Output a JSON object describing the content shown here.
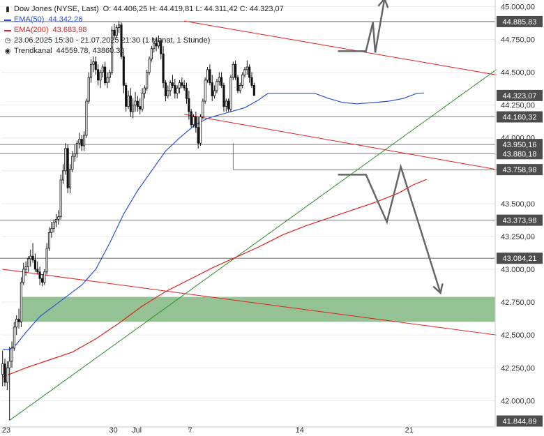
{
  "legend": {
    "title": "Dow Jones (NYSE, Last)",
    "ohlc": "O: 44.406,25  H: 44.419,81  L: 44.311,42  C: 44.323,07",
    "ema50_label": "EMA(50)",
    "ema50_value": "44.342,26",
    "ema200_label": "EMA(200)",
    "ema200_value": "43.683,98",
    "period": "23.06.2025 15:30 - 21.07.2025 21:30   (1 Monat, 1 Stunde)",
    "trend_label": "Trendkanal",
    "trend_value": "44559.78, 43860.30",
    "colors": {
      "ema50": "#2a4fd6",
      "ema200": "#e02020",
      "trend": "#555555"
    }
  },
  "chart_data": {
    "type": "candlestick",
    "ylim": [
      41800,
      45050
    ],
    "y_ticks": [
      {
        "v": 45000,
        "label": "45.000,00"
      },
      {
        "v": 44750,
        "label": "44.750,00"
      },
      {
        "v": 44500,
        "label": "44.500,00"
      },
      {
        "v": 44250,
        "label": "44.250,00"
      },
      {
        "v": 44000,
        "label": "44.000,00"
      },
      {
        "v": 43750,
        "label": "43.750,00"
      },
      {
        "v": 43500,
        "label": "43.500,00"
      },
      {
        "v": 43250,
        "label": "43.250,00"
      },
      {
        "v": 43000,
        "label": "43.000,00"
      },
      {
        "v": 42750,
        "label": "42.750,00"
      },
      {
        "v": 42500,
        "label": "42.500,00"
      },
      {
        "v": 42250,
        "label": "42.250,00"
      },
      {
        "v": 42000,
        "label": "42.000,00"
      }
    ],
    "x_labels": [
      {
        "i": 1,
        "label": "23"
      },
      {
        "i": 47,
        "label": "30"
      },
      {
        "i": 57,
        "label": "Jul"
      },
      {
        "i": 80,
        "label": "7"
      },
      {
        "i": 127,
        "label": "14"
      },
      {
        "i": 174,
        "label": "21"
      }
    ],
    "n_slots": 212,
    "levels": [
      {
        "v": 44885.83,
        "label": "44.885,83",
        "line": true
      },
      {
        "v": 44323.07,
        "label": "44.323,07",
        "line": false
      },
      {
        "v": 44160.32,
        "label": "44.160,32",
        "line": true
      },
      {
        "v": 43950.16,
        "label": "43.950,16",
        "line": true
      },
      {
        "v": 43880.18,
        "label": "43.880,18",
        "line": true
      },
      {
        "v": 43758.98,
        "label": "43.758,98",
        "line": false
      },
      {
        "v": 43373.98,
        "label": "43.373,98",
        "line": true
      },
      {
        "v": 43084.21,
        "label": "43.084,21",
        "line": true
      },
      {
        "v": 41844.89,
        "label": "41.844,89",
        "line": false
      }
    ],
    "support_zone": {
      "from": 42600,
      "to": 42790,
      "x_from": 8
    },
    "trend_lines": [
      {
        "name": "",
        "color": "#e02020",
        "x1": 78,
        "y1": 44890,
        "x2": 212,
        "y2": 44480
      },
      {
        "name": "",
        "color": "#e02020",
        "x1": 78,
        "y1": 44180,
        "x2": 212,
        "y2": 43760
      },
      {
        "name": "",
        "color": "#e02020",
        "x1": 0,
        "y1": 43000,
        "x2": 212,
        "y2": 42500
      },
      {
        "name": "",
        "color": "#2e8b2e",
        "x1": 3,
        "y1": 41850,
        "x2": 212,
        "y2": 44520
      }
    ],
    "ema50": [
      [
        0,
        42390
      ],
      [
        3,
        42390
      ],
      [
        6,
        42430
      ],
      [
        10,
        42520
      ],
      [
        16,
        42640
      ],
      [
        22,
        42720
      ],
      [
        28,
        42800
      ],
      [
        34,
        42880
      ],
      [
        40,
        43000
      ],
      [
        46,
        43200
      ],
      [
        52,
        43420
      ],
      [
        58,
        43600
      ],
      [
        64,
        43750
      ],
      [
        70,
        43900
      ],
      [
        76,
        44000
      ],
      [
        82,
        44090
      ],
      [
        88,
        44150
      ],
      [
        96,
        44190
      ],
      [
        104,
        44230
      ],
      [
        110,
        44290
      ],
      [
        114,
        44340
      ],
      [
        124,
        44340
      ],
      [
        134,
        44340
      ],
      [
        140,
        44300
      ],
      [
        146,
        44270
      ],
      [
        152,
        44260
      ],
      [
        160,
        44270
      ],
      [
        166,
        44280
      ],
      [
        172,
        44300
      ],
      [
        178,
        44340
      ],
      [
        181,
        44342
      ]
    ],
    "ema200": [
      [
        0,
        42180
      ],
      [
        10,
        42250
      ],
      [
        20,
        42310
      ],
      [
        30,
        42370
      ],
      [
        40,
        42470
      ],
      [
        50,
        42590
      ],
      [
        60,
        42720
      ],
      [
        70,
        42830
      ],
      [
        80,
        42920
      ],
      [
        90,
        43010
      ],
      [
        100,
        43090
      ],
      [
        110,
        43170
      ],
      [
        120,
        43260
      ],
      [
        130,
        43330
      ],
      [
        140,
        43390
      ],
      [
        150,
        43450
      ],
      [
        160,
        43510
      ],
      [
        170,
        43580
      ],
      [
        176,
        43640
      ],
      [
        182,
        43684
      ]
    ],
    "candles": [
      [
        0,
        42200,
        42380,
        42110,
        42280
      ],
      [
        1,
        42280,
        42320,
        42110,
        42140
      ],
      [
        2,
        42140,
        42300,
        42080,
        42250
      ],
      [
        3,
        42250,
        42410,
        41850,
        42300
      ],
      [
        4,
        42300,
        42450,
        42250,
        42400
      ],
      [
        5,
        42400,
        42600,
        42380,
        42560
      ],
      [
        6,
        42560,
        42650,
        42500,
        42620
      ],
      [
        7,
        42620,
        42700,
        42550,
        42600
      ],
      [
        8,
        42600,
        42940,
        42560,
        42900
      ],
      [
        9,
        42900,
        43050,
        42880,
        43000
      ],
      [
        10,
        43000,
        43060,
        42950,
        43020
      ],
      [
        11,
        43020,
        43100,
        42980,
        43080
      ],
      [
        12,
        43080,
        43150,
        43020,
        43100
      ],
      [
        13,
        43100,
        43200,
        43050,
        43070
      ],
      [
        14,
        43070,
        43120,
        42980,
        43000
      ],
      [
        15,
        43000,
        43060,
        42960,
        42980
      ],
      [
        16,
        42980,
        43020,
        42880,
        42930
      ],
      [
        17,
        42930,
        42960,
        42870,
        42900
      ],
      [
        18,
        42900,
        43000,
        42880,
        42980
      ],
      [
        19,
        42980,
        43200,
        42960,
        43160
      ],
      [
        20,
        43160,
        43320,
        43140,
        43280
      ],
      [
        21,
        43280,
        43360,
        43240,
        43310
      ],
      [
        22,
        43310,
        43380,
        43280,
        43360
      ],
      [
        23,
        43360,
        43420,
        43320,
        43380
      ],
      [
        24,
        43380,
        43450,
        43340,
        43400
      ],
      [
        25,
        43400,
        43720,
        43380,
        43680
      ],
      [
        26,
        43680,
        43800,
        43650,
        43750
      ],
      [
        27,
        43750,
        43960,
        43720,
        43920
      ],
      [
        28,
        43920,
        43950,
        43580,
        43620
      ],
      [
        29,
        43620,
        43800,
        43580,
        43760
      ],
      [
        30,
        43760,
        43900,
        43740,
        43860
      ],
      [
        31,
        43860,
        43950,
        43820,
        43880
      ],
      [
        32,
        43880,
        43980,
        43850,
        43960
      ],
      [
        33,
        43960,
        44040,
        43920,
        43990
      ],
      [
        34,
        43990,
        44020,
        43900,
        43940
      ],
      [
        35,
        43940,
        44050,
        43900,
        44020
      ],
      [
        36,
        44020,
        44300,
        44000,
        44280
      ],
      [
        37,
        44280,
        44500,
        44260,
        44460
      ],
      [
        38,
        44460,
        44600,
        44420,
        44560
      ],
      [
        39,
        44560,
        44620,
        44500,
        44580
      ],
      [
        40,
        44580,
        44620,
        44480,
        44520
      ],
      [
        41,
        44520,
        44560,
        44400,
        44440
      ],
      [
        42,
        44440,
        44520,
        44380,
        44500
      ],
      [
        43,
        44500,
        44560,
        44460,
        44540
      ],
      [
        44,
        44540,
        44580,
        44400,
        44420
      ],
      [
        45,
        44420,
        44500,
        44380,
        44460
      ],
      [
        46,
        44460,
        44520,
        44420,
        44500
      ],
      [
        47,
        44500,
        44850,
        44480,
        44820
      ],
      [
        48,
        44820,
        44870,
        44760,
        44780
      ],
      [
        49,
        44780,
        44860,
        44760,
        44840
      ],
      [
        50,
        44840,
        44890,
        44800,
        44860
      ],
      [
        51,
        44860,
        44880,
        44600,
        44620
      ],
      [
        52,
        44620,
        44650,
        44340,
        44400
      ],
      [
        53,
        44400,
        44420,
        44200,
        44240
      ],
      [
        54,
        44240,
        44360,
        44220,
        44320
      ],
      [
        55,
        44320,
        44380,
        44160,
        44200
      ],
      [
        56,
        44200,
        44300,
        44150,
        44250
      ],
      [
        57,
        44250,
        44350,
        44200,
        44280
      ],
      [
        58,
        44280,
        44320,
        44200,
        44240
      ],
      [
        59,
        44240,
        44300,
        44180,
        44220
      ],
      [
        60,
        44220,
        44380,
        44200,
        44340
      ],
      [
        61,
        44340,
        44400,
        44300,
        44380
      ],
      [
        62,
        44380,
        44520,
        44360,
        44500
      ],
      [
        63,
        44500,
        44620,
        44480,
        44600
      ],
      [
        64,
        44600,
        44700,
        44580,
        44680
      ],
      [
        65,
        44680,
        44760,
        44650,
        44720
      ],
      [
        66,
        44720,
        44760,
        44660,
        44700
      ],
      [
        67,
        44700,
        44780,
        44680,
        44740
      ],
      [
        68,
        44740,
        44760,
        44600,
        44640
      ],
      [
        69,
        44640,
        44700,
        44380,
        44420
      ],
      [
        70,
        44420,
        44440,
        44280,
        44320
      ],
      [
        71,
        44320,
        44400,
        44300,
        44360
      ],
      [
        72,
        44360,
        44440,
        44320,
        44420
      ],
      [
        73,
        44420,
        44480,
        44380,
        44400
      ],
      [
        74,
        44400,
        44450,
        44300,
        44340
      ],
      [
        75,
        44340,
        44400,
        44300,
        44380
      ],
      [
        76,
        44380,
        44440,
        44340,
        44420
      ],
      [
        77,
        44420,
        44460,
        44380,
        44400
      ],
      [
        78,
        44400,
        44440,
        44360,
        44380
      ],
      [
        79,
        44380,
        44420,
        44260,
        44300
      ],
      [
        80,
        44300,
        44360,
        44140,
        44200
      ],
      [
        81,
        44200,
        44220,
        44080,
        44100
      ],
      [
        82,
        44100,
        44180,
        44080,
        44160
      ],
      [
        83,
        44160,
        44200,
        44040,
        44080
      ],
      [
        84,
        44080,
        44160,
        43920,
        43960
      ],
      [
        85,
        43960,
        44180,
        43940,
        44160
      ],
      [
        86,
        44160,
        44300,
        44140,
        44280
      ],
      [
        87,
        44280,
        44460,
        44260,
        44440
      ],
      [
        88,
        44440,
        44540,
        44420,
        44520
      ],
      [
        89,
        44520,
        44560,
        44400,
        44420
      ],
      [
        90,
        44420,
        44480,
        44280,
        44320
      ],
      [
        91,
        44320,
        44400,
        44300,
        44360
      ],
      [
        92,
        44360,
        44450,
        44340,
        44430
      ],
      [
        93,
        44430,
        44500,
        44400,
        44460
      ],
      [
        94,
        44460,
        44500,
        44380,
        44400
      ],
      [
        95,
        44400,
        44420,
        44200,
        44240
      ],
      [
        96,
        44240,
        44300,
        44200,
        44280
      ],
      [
        97,
        44280,
        44300,
        44200,
        44220
      ],
      [
        98,
        44220,
        44480,
        44200,
        44460
      ],
      [
        99,
        44460,
        44580,
        44440,
        44560
      ],
      [
        100,
        44560,
        44590,
        44440,
        44460
      ],
      [
        101,
        44460,
        44480,
        44340,
        44360
      ],
      [
        102,
        44360,
        44420,
        44340,
        44400
      ],
      [
        103,
        44400,
        44500,
        44380,
        44480
      ],
      [
        104,
        44480,
        44540,
        44460,
        44520
      ],
      [
        105,
        44520,
        44590,
        44480,
        44540
      ],
      [
        106,
        44540,
        44560,
        44420,
        44460
      ],
      [
        107,
        44460,
        44500,
        44380,
        44400
      ],
      [
        108,
        44400,
        44420,
        44323,
        44323
      ]
    ],
    "annotations": {
      "up_arrow": [
        [
          144,
          44660
        ],
        [
          156,
          44660
        ],
        [
          159,
          44880
        ],
        [
          160,
          44650
        ],
        [
          164,
          45060
        ]
      ],
      "down_arrow": [
        [
          144,
          43720
        ],
        [
          156,
          43720
        ],
        [
          165,
          43360
        ],
        [
          171,
          43780
        ],
        [
          188,
          42820
        ]
      ]
    }
  }
}
